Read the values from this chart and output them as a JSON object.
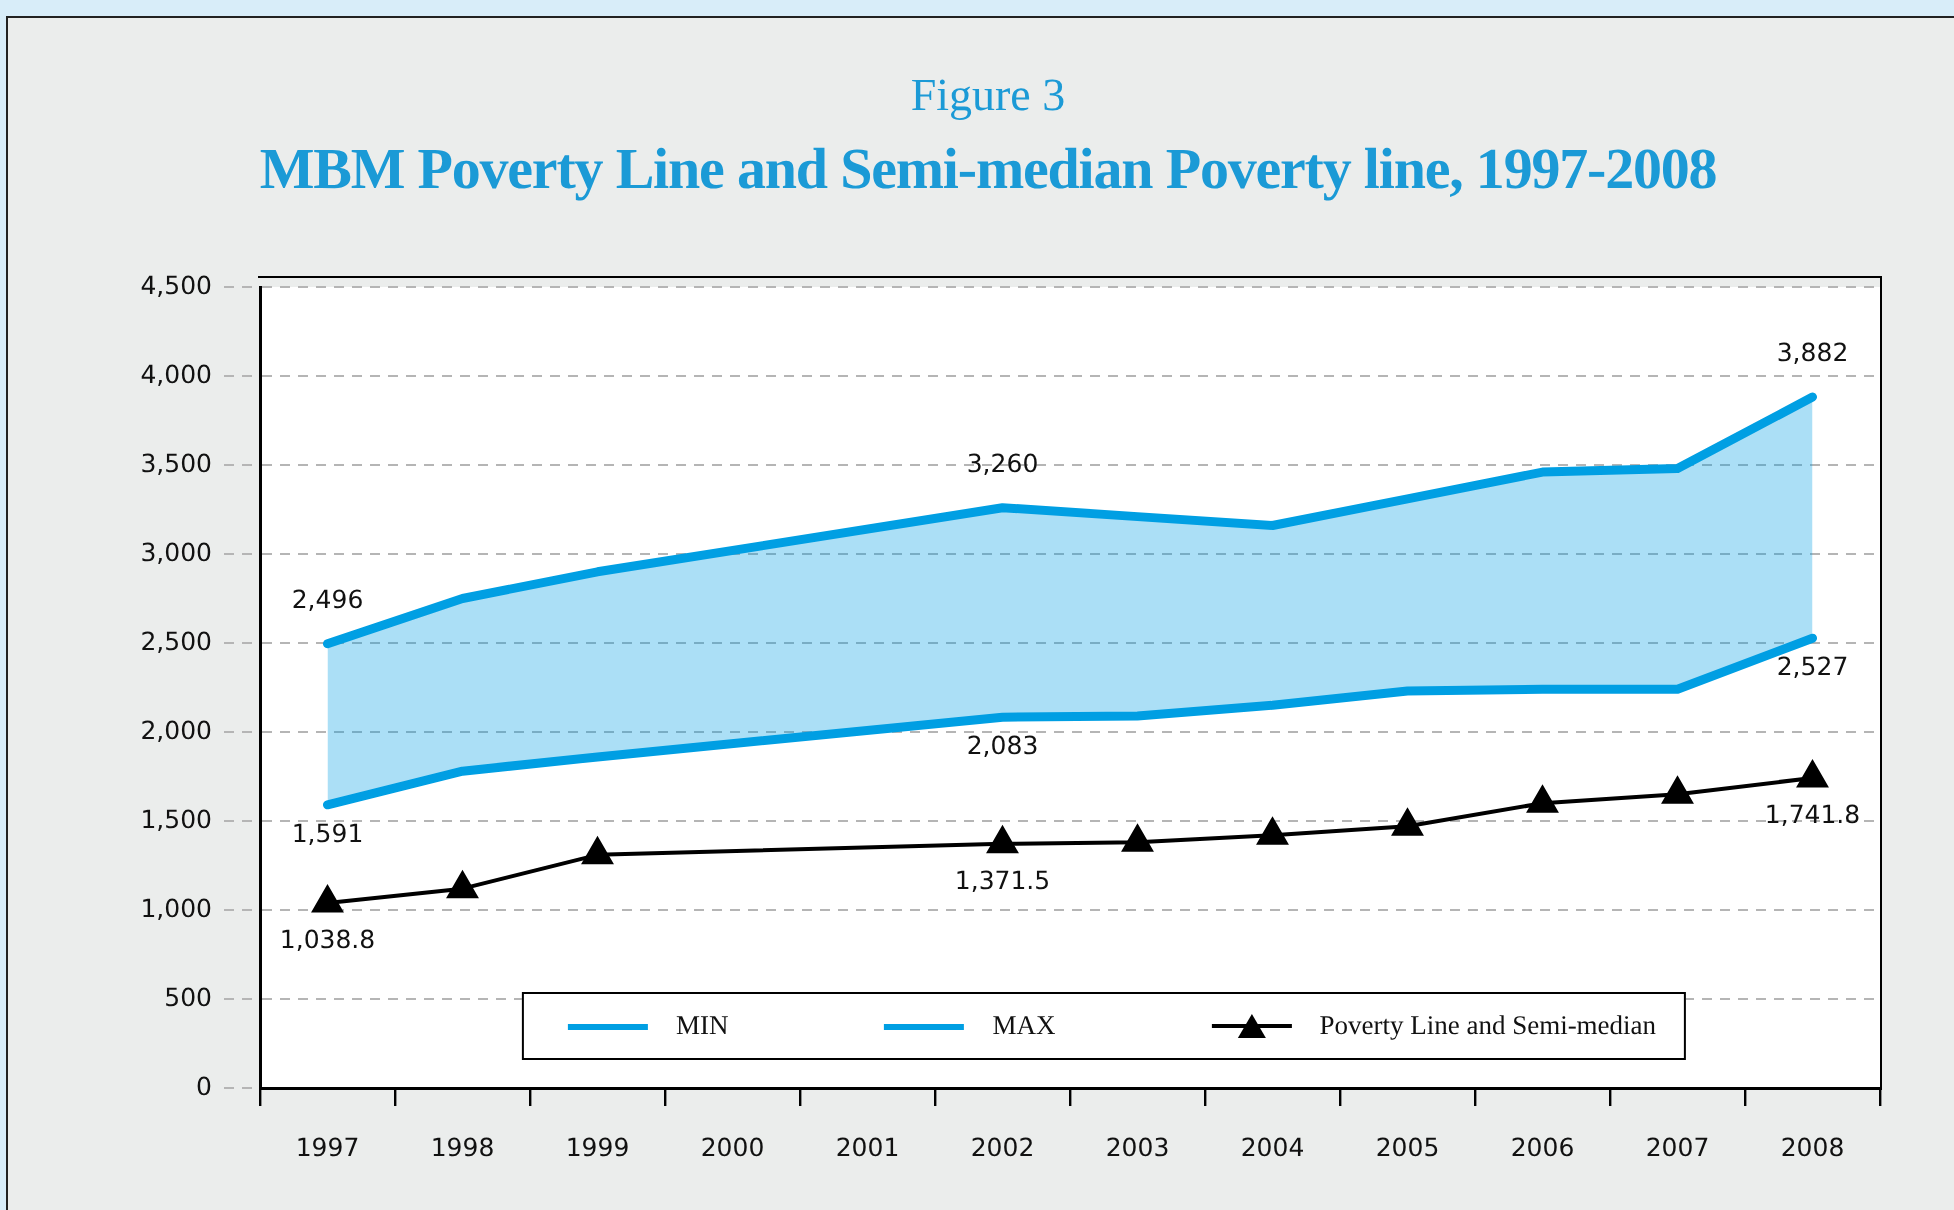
{
  "chart_data": {
    "type": "line",
    "title": "MBM Poverty Line and Semi-median Poverty line, 1997-2008",
    "subtitle": "Figure 3",
    "categories": [
      "1997",
      "1998",
      "1999",
      "2000",
      "2001",
      "2002",
      "2003",
      "2004",
      "2005",
      "2006",
      "2007",
      "2008"
    ],
    "series": [
      {
        "name": "MIN",
        "color": "#009fe3",
        "values": [
          1591,
          1780,
          1860,
          null,
          null,
          2083,
          2090,
          2150,
          2230,
          2240,
          2240,
          2527
        ],
        "value_labels": [
          "1,591",
          null,
          null,
          null,
          null,
          "2,083",
          null,
          null,
          null,
          null,
          null,
          "2,527"
        ]
      },
      {
        "name": "MAX",
        "type": "area",
        "color": "#009fe3",
        "values": [
          2496,
          2750,
          2900,
          null,
          null,
          3260,
          3210,
          3160,
          3310,
          3460,
          3480,
          3882
        ],
        "value_labels": [
          "2,496",
          null,
          null,
          null,
          null,
          "3,260",
          null,
          null,
          null,
          null,
          null,
          "3,882"
        ]
      },
      {
        "name": "Poverty Line and Semi-median",
        "color": "#000000",
        "marker": "triangle",
        "values": [
          1038.8,
          1120,
          1310,
          null,
          null,
          1371.5,
          1380,
          1420,
          1470,
          1600,
          1650,
          1741.8
        ],
        "value_labels": [
          "1,038.8",
          null,
          null,
          null,
          null,
          "1,371.5",
          null,
          null,
          null,
          null,
          null,
          "1,741.8"
        ]
      }
    ],
    "ylim": [
      0,
      4500
    ],
    "yticks": [
      0,
      500,
      {
        "value": 1000,
        "label": "1,000"
      },
      {
        "value": 1500,
        "label": "1,500"
      },
      {
        "value": 2000,
        "label": "2,000"
      },
      {
        "value": 2500,
        "label": "2,500"
      },
      {
        "value": 3000,
        "label": "3,000"
      },
      {
        "value": 3500,
        "label": "3,500"
      },
      {
        "value": 4000,
        "label": "4,000"
      },
      {
        "value": 4500,
        "label": "4,500"
      }
    ],
    "grid": "y",
    "legend": "bottom"
  }
}
